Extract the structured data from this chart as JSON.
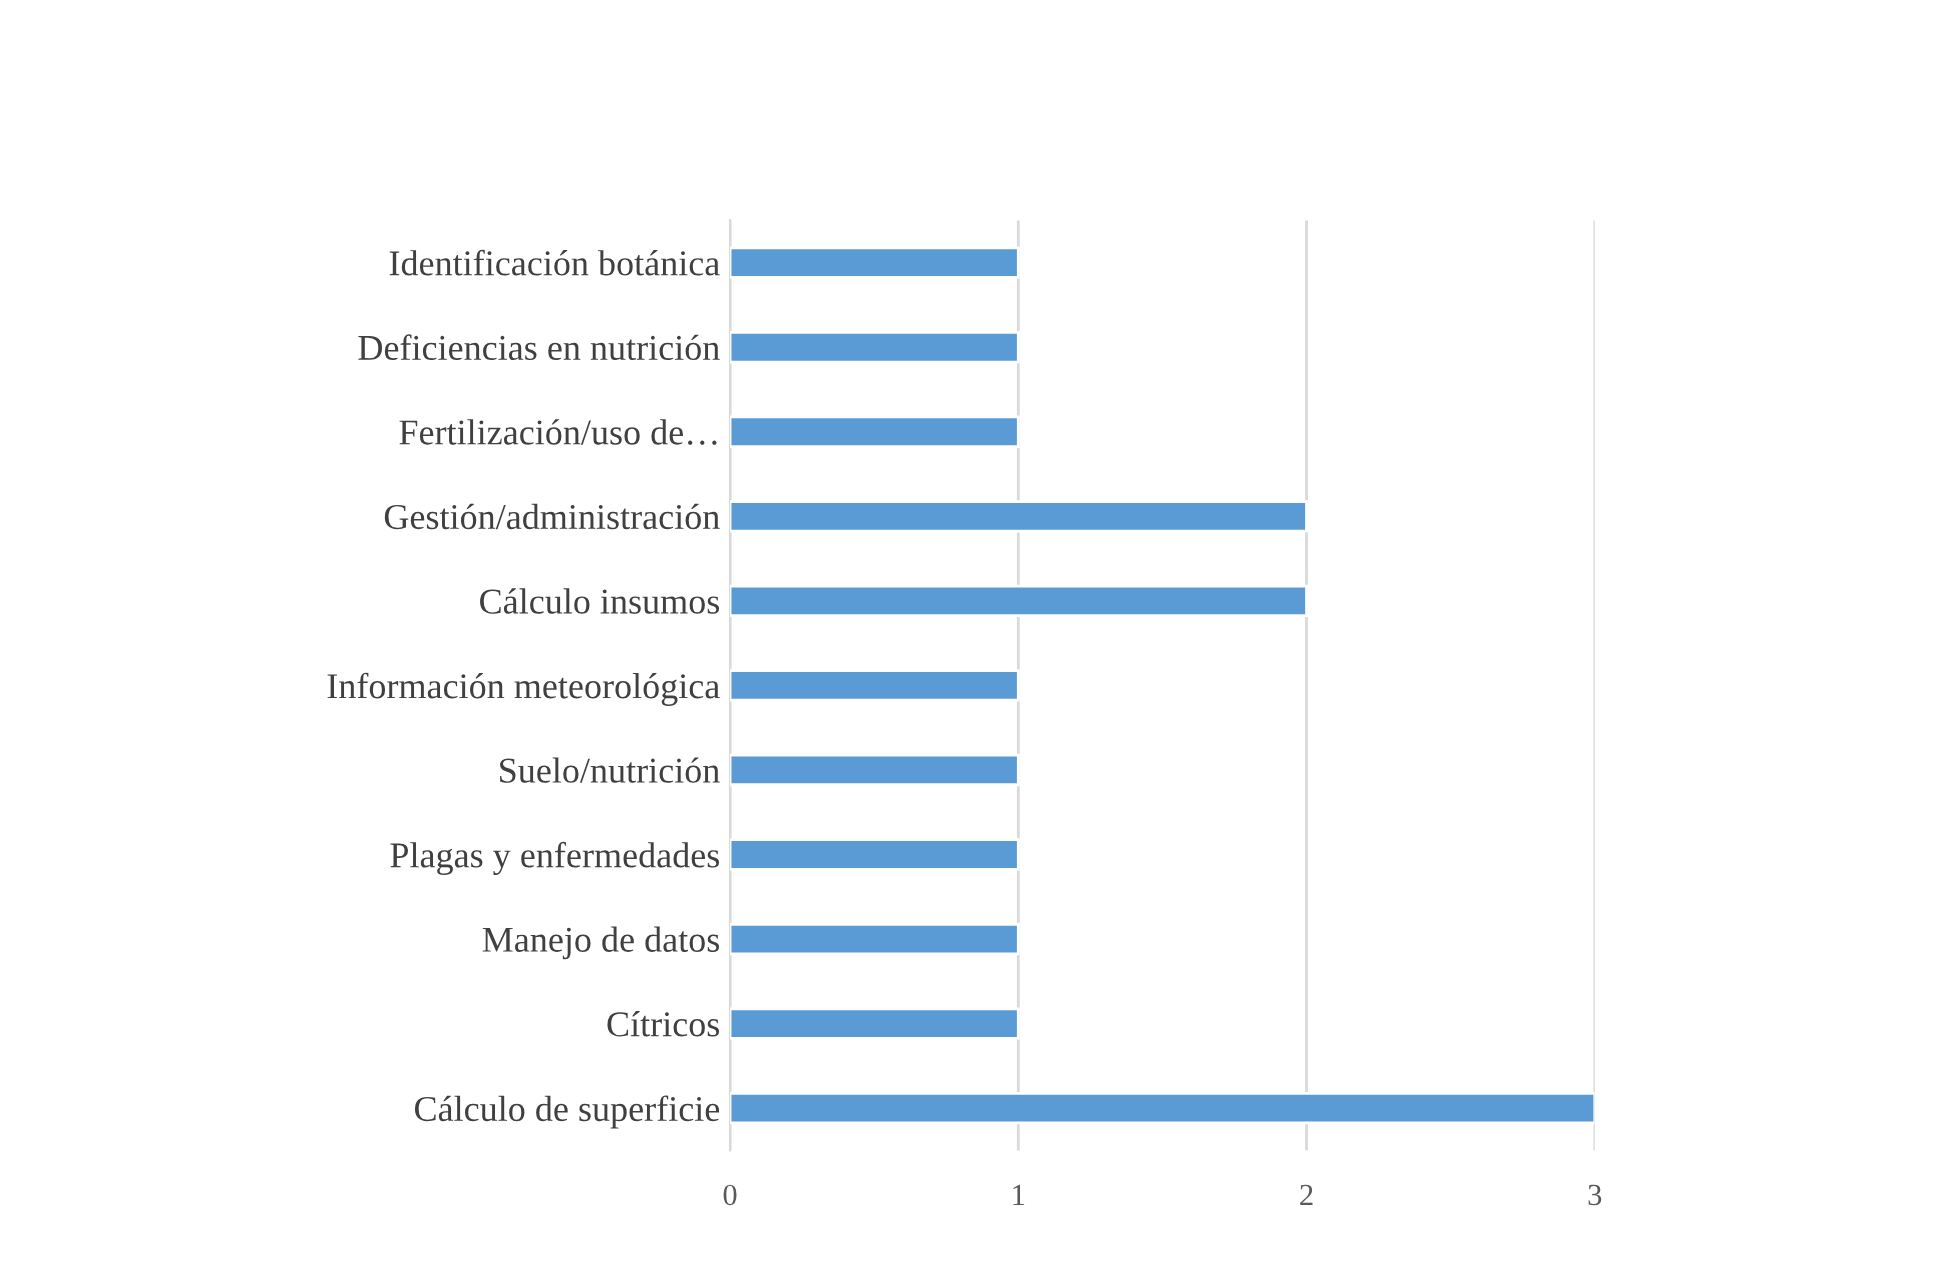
{
  "chart_data": {
    "type": "bar",
    "orientation": "horizontal",
    "categories": [
      "Identificación botánica",
      "Deficiencias en nutrición",
      "Fertilización/uso de…",
      "Gestión/administración",
      "Cálculo insumos",
      "Información meteorológica",
      "Suelo/nutrición",
      "Plagas y enfermedades",
      "Manejo de datos",
      "Cítricos",
      "Cálculo de superficie"
    ],
    "values": [
      1,
      1,
      1,
      2,
      2,
      1,
      1,
      1,
      1,
      1,
      3
    ],
    "color": "#5b9bd5",
    "xlim": [
      0,
      3
    ],
    "xticks": [
      0,
      1,
      2,
      3
    ],
    "grid": "x",
    "legend": false
  }
}
